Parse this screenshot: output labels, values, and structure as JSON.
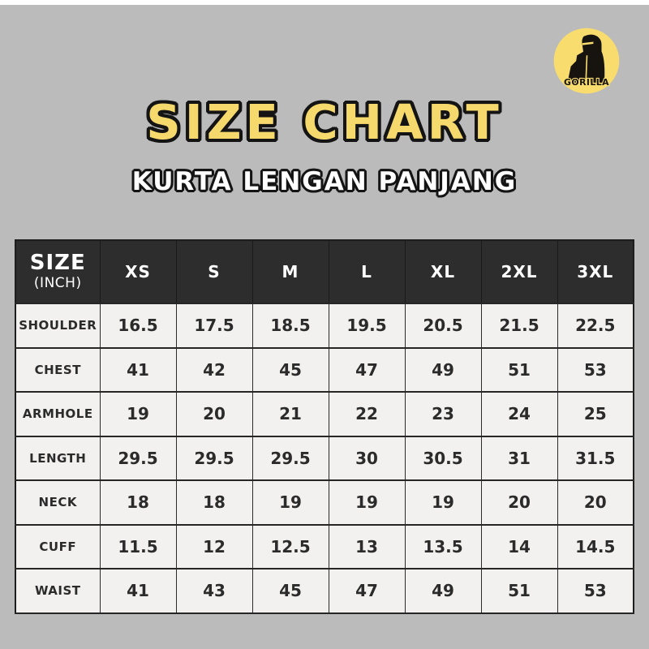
{
  "page": {
    "background_color": "#bbbbbb",
    "top_frame_color": "#ffffff"
  },
  "logo": {
    "brand": "GORILLA",
    "circle_color": "#f8dc6e",
    "glyph_color": "#17130f"
  },
  "header": {
    "title": "SIZE CHART",
    "subtitle": "KURTA LENGAN PANJANG",
    "title_color": "#f6d96d",
    "outline_color": "#141414"
  },
  "table": {
    "corner_title": "SIZE",
    "corner_subtitle": "(INCH)",
    "header_bg": "#2d2d2d",
    "cell_bg": "#f2f1ef",
    "border_color": "#262626"
  },
  "chart_data": {
    "type": "table",
    "title": "SIZE CHART",
    "subtitle": "KURTA LENGAN PANJANG",
    "unit": "INCH",
    "columns": [
      "XS",
      "S",
      "M",
      "L",
      "XL",
      "2XL",
      "3XL"
    ],
    "rows": [
      {
        "label": "SHOULDER",
        "values": [
          "16.5",
          "17.5",
          "18.5",
          "19.5",
          "20.5",
          "21.5",
          "22.5"
        ]
      },
      {
        "label": "CHEST",
        "values": [
          "41",
          "42",
          "45",
          "47",
          "49",
          "51",
          "53"
        ]
      },
      {
        "label": "ARMHOLE",
        "values": [
          "19",
          "20",
          "21",
          "22",
          "23",
          "24",
          "25"
        ]
      },
      {
        "label": "LENGTH",
        "values": [
          "29.5",
          "29.5",
          "29.5",
          "30",
          "30.5",
          "31",
          "31.5"
        ]
      },
      {
        "label": "NECK",
        "values": [
          "18",
          "18",
          "19",
          "19",
          "19",
          "20",
          "20"
        ]
      },
      {
        "label": "CUFF",
        "values": [
          "11.5",
          "12",
          "12.5",
          "13",
          "13.5",
          "14",
          "14.5"
        ]
      },
      {
        "label": "WAIST",
        "values": [
          "41",
          "43",
          "45",
          "47",
          "49",
          "51",
          "53"
        ]
      }
    ]
  }
}
